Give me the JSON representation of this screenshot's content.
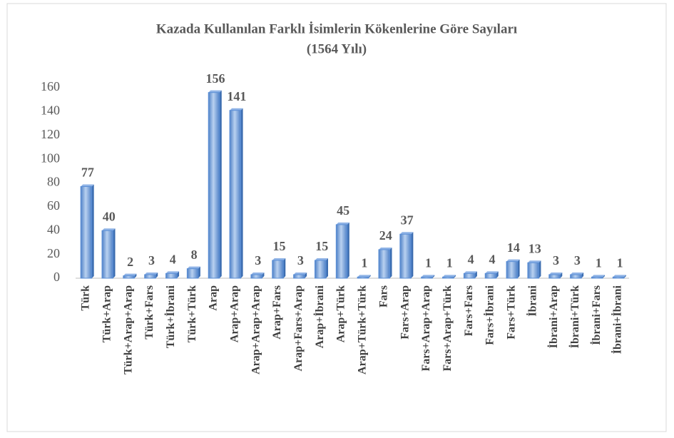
{
  "chart_data": {
    "type": "bar",
    "title": "Kazada Kullanılan Farklı  İsimlerin Kökenlerine Göre Sayıları",
    "subtitle": "(1564 Yılı)",
    "categories": [
      "Türk",
      "Türk+Arap",
      "Türk+Arap+Arap",
      "Türk+Fars",
      "Türk+İbrani",
      "Türk+Türk",
      "Arap",
      "Arap+Arap",
      "Arap+Arap+Arap",
      "Arap+Fars",
      "Arap+Fars+Arap",
      "Arap+İbrani",
      "Arap+Türk",
      "Arap+Türk+Türk",
      "Fars",
      "Fars+Arap",
      "Fars+Arap+Arap",
      "Fars+Arap+Türk",
      "Fars+Fars",
      "Fars+İbrani",
      "Fars+Türk",
      "İbrani",
      "İbrani+Arap",
      "İbrani+Türk",
      "İbrani+Fars",
      "İbrani+İbrani"
    ],
    "values": [
      77,
      40,
      2,
      3,
      4,
      8,
      156,
      141,
      3,
      15,
      3,
      15,
      45,
      1,
      24,
      37,
      1,
      1,
      4,
      4,
      14,
      13,
      3,
      3,
      1,
      1
    ],
    "color": "#5b8fd6",
    "ylim": [
      0,
      160
    ],
    "yticks": [
      0,
      20,
      40,
      60,
      80,
      100,
      120,
      140,
      160
    ],
    "grid": false
  }
}
